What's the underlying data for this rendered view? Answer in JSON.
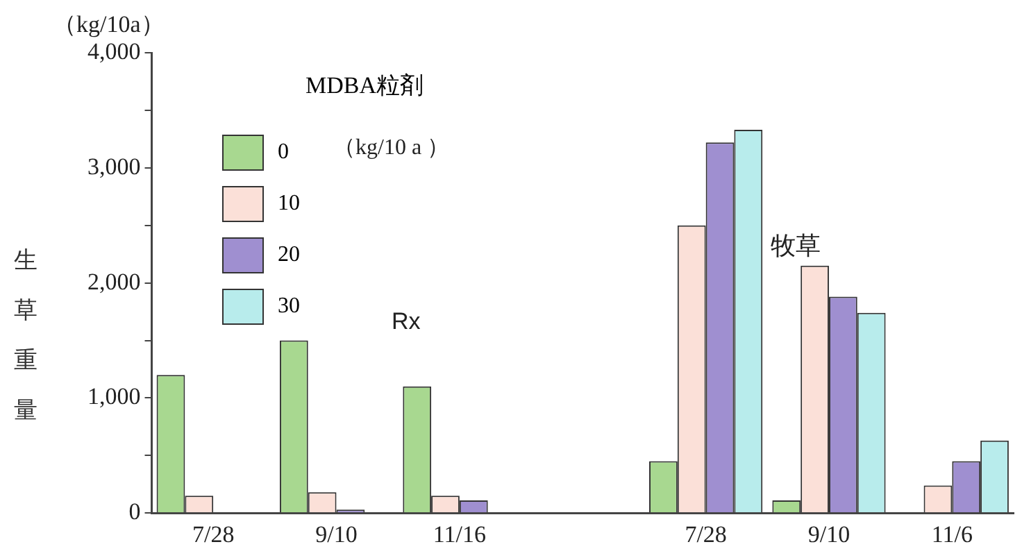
{
  "chart_data": {
    "type": "bar",
    "ylabel": "生草重量",
    "legend_title": "MDBA粒剤",
    "annotations": [
      "（kg/10a）",
      "（kg/10 a ）",
      "Rx",
      "牧草"
    ],
    "categories": [
      "7/28",
      "9/10",
      "11/16",
      null,
      "7/28",
      "9/10",
      "11/6"
    ],
    "series": [
      {
        "name": "0",
        "color": "#a8d890",
        "values": [
          1200,
          1500,
          1100,
          null,
          450,
          110,
          0
        ]
      },
      {
        "name": "10",
        "color": "#fbe0d8",
        "values": [
          150,
          180,
          150,
          null,
          2500,
          2150,
          240
        ]
      },
      {
        "name": "20",
        "color": "#9f8fd0",
        "values": [
          0,
          30,
          110,
          null,
          3220,
          1880,
          450
        ]
      },
      {
        "name": "30",
        "color": "#b8ecec",
        "values": [
          0,
          0,
          0,
          null,
          3330,
          1740,
          630
        ]
      }
    ],
    "ylim": [
      0,
      4000
    ],
    "yticks": [
      0,
      {
        "value": 500,
        "label": null
      },
      {
        "value": 1000,
        "label": "1,000"
      },
      {
        "value": 1500,
        "label": null
      },
      {
        "value": 2000,
        "label": "2,000"
      },
      {
        "value": 2500,
        "label": null
      },
      {
        "value": 3000,
        "label": "3,000"
      },
      {
        "value": 3500,
        "label": null
      },
      {
        "value": 4000,
        "label": "4,000"
      }
    ],
    "grid": false,
    "legend": "top left"
  }
}
